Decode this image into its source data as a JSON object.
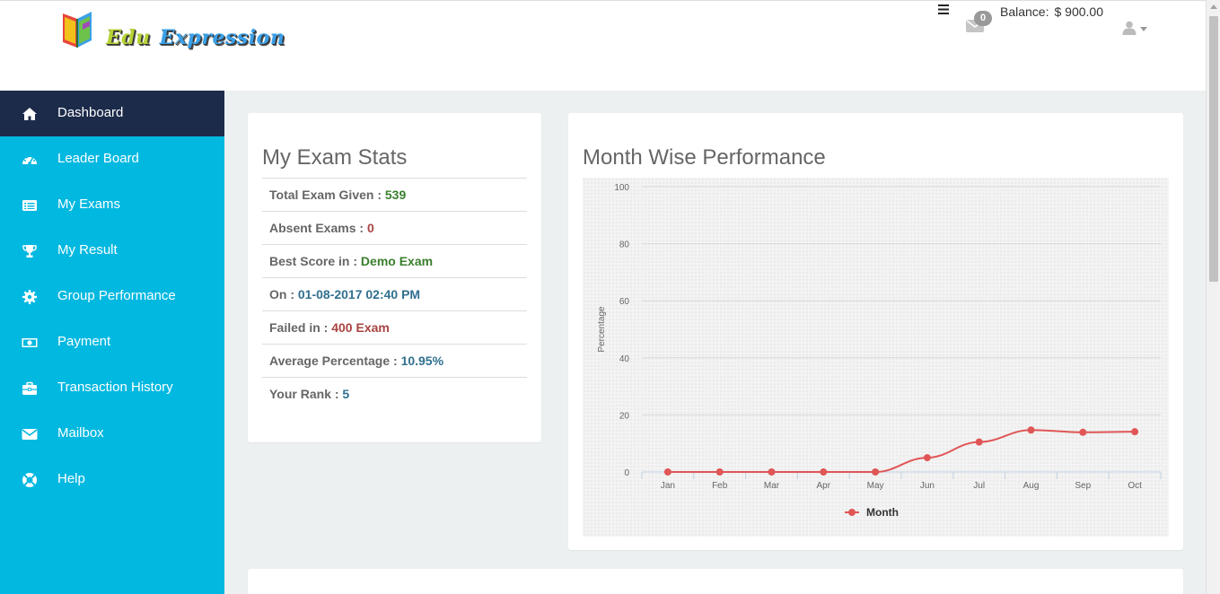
{
  "header": {
    "logo": {
      "word1": "Edu",
      "word2": "Expression"
    },
    "menu_icon": "hamburger-icon",
    "mail_badge": "0",
    "balance_label": "Balance:",
    "balance_value": "$ 900.00"
  },
  "sidebar": {
    "items": [
      {
        "label": "Dashboard",
        "icon": "home-icon",
        "active": true
      },
      {
        "label": "Leader Board",
        "icon": "dashboard-gauge-icon"
      },
      {
        "label": "My Exams",
        "icon": "list-alt-icon"
      },
      {
        "label": "My Result",
        "icon": "trophy-icon"
      },
      {
        "label": "Group Performance",
        "icon": "gear-icon"
      },
      {
        "label": "Payment",
        "icon": "money-icon"
      },
      {
        "label": "Transaction History",
        "icon": "briefcase-icon"
      },
      {
        "label": "Mailbox",
        "icon": "envelope-icon"
      },
      {
        "label": "Help",
        "icon": "lifebuoy-icon"
      }
    ]
  },
  "stats": {
    "title": "My Exam Stats",
    "rows": [
      {
        "label": "Total Exam Given : ",
        "value": "539",
        "color": "#3a7f2d"
      },
      {
        "label": "Absent Exams : ",
        "value": "0",
        "color": "#a94442"
      },
      {
        "label": "Best Score in : ",
        "value": "Demo Exam",
        "color": "#3a7f2d"
      },
      {
        "label": "On : ",
        "value": "01-08-2017 02:40 PM",
        "color": "#31708f"
      },
      {
        "label": "Failed in : ",
        "value": "400 Exam",
        "color": "#a94442"
      },
      {
        "label": "Average Percentage : ",
        "value": "10.95%",
        "color": "#31708f"
      },
      {
        "label": "Your Rank : ",
        "value": "5",
        "color": "#31708f"
      }
    ]
  },
  "performance": {
    "title": "Month Wise Performance"
  },
  "chart_data": {
    "type": "line",
    "title": "",
    "xlabel": "",
    "ylabel": "Percentage",
    "categories": [
      "Jan",
      "Feb",
      "Mar",
      "Apr",
      "May",
      "Jun",
      "Jul",
      "Aug",
      "Sep",
      "Oct"
    ],
    "series": [
      {
        "name": "Month",
        "values": [
          0,
          0,
          0,
          0,
          0,
          5,
          10.5,
          14.7,
          13.9,
          14.1
        ],
        "color": "#e05656"
      }
    ],
    "ylim": [
      0,
      100
    ],
    "yticks": [
      0,
      20,
      40,
      60,
      80,
      100
    ],
    "grid": true,
    "legend": "bottom-center",
    "smooth": true
  }
}
